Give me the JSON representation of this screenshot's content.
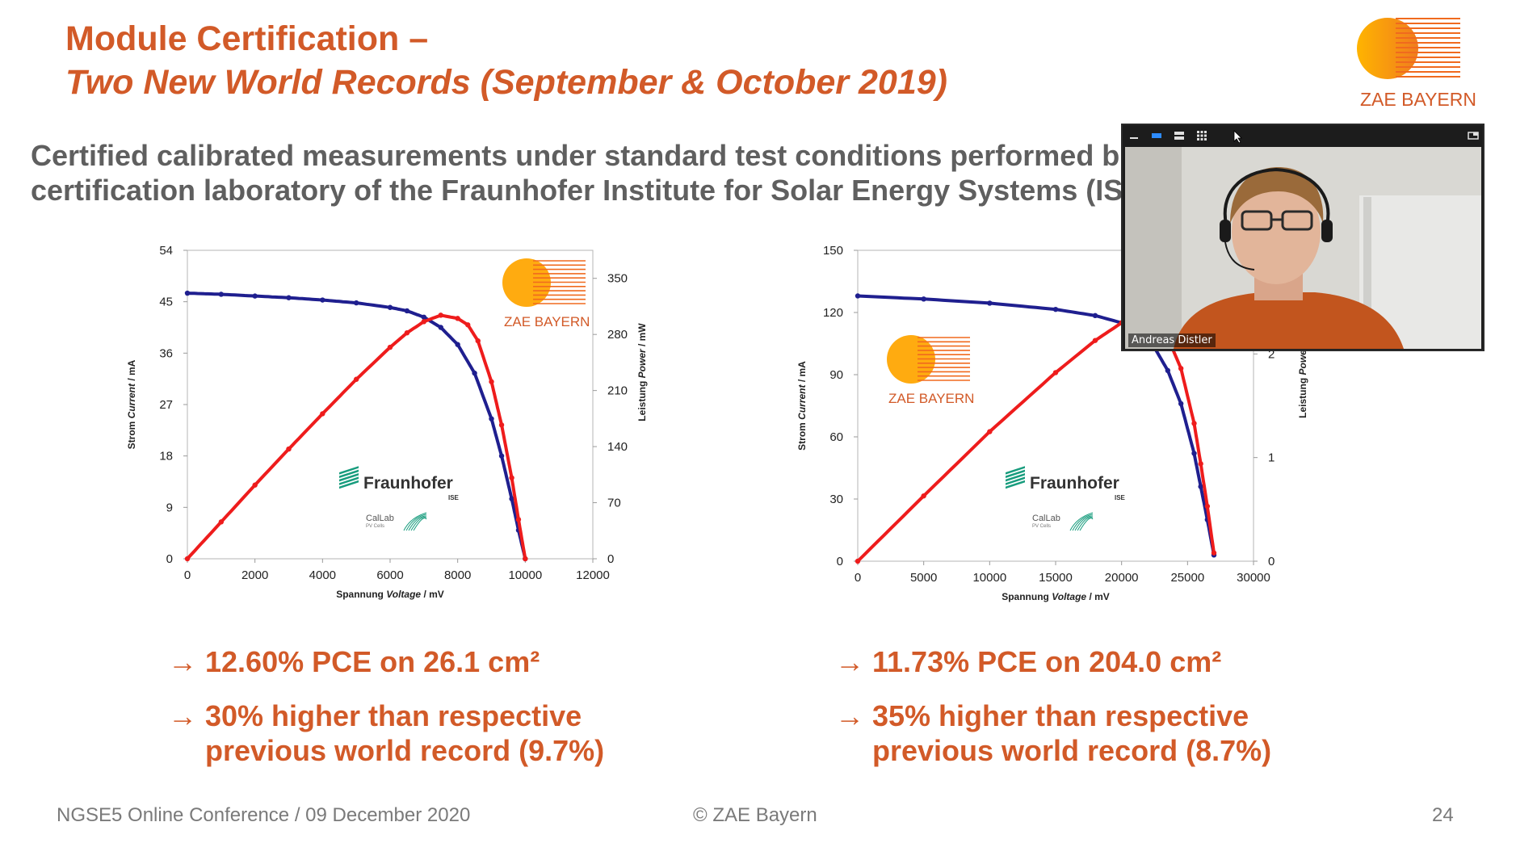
{
  "slide": {
    "title_line1": "Module Certification –",
    "title_line2": "Two New World Records (September & October 2019)",
    "subtitle_line1": "Certified calibrated measurements under standard test conditions performed b",
    "subtitle_line2": "certification laboratory of the Fraunhofer Institute for Solar Energy Systems (IS",
    "logo_text": "ZAE BAYERN",
    "left_bullets": {
      "b1": "12.60% PCE on 26.1 cm²",
      "b2_line1": "30% higher than respective",
      "b2_line2": "previous world record (9.7%)"
    },
    "right_bullets": {
      "b1": "11.73% PCE on 204.0 cm²",
      "b2_line1": "35% higher than respective",
      "b2_line2": "previous world record (8.7%)"
    },
    "arrow_glyph": "→",
    "footer": {
      "left": "NGSE5 Online Conference / 09 December 2020",
      "center": "© ZAE Bayern",
      "page": "24"
    }
  },
  "video": {
    "participant_name": "Andreas Distler"
  },
  "colors": {
    "accent": "#d25a28",
    "current_series": "#1f1f8f",
    "power_series": "#ee1c1c"
  },
  "chart_data": [
    {
      "type": "line",
      "xlabel_prefix": "Spannung ",
      "xlabel_italic": "Voltage",
      "xlabel_suffix": " / mV",
      "ylabel_prefix": "Strom ",
      "ylabel_italic": "Current",
      "ylabel_suffix": " / mA",
      "y2label_prefix": "Leistung ",
      "y2label_italic": "Power",
      "y2label_suffix": " / mW",
      "xlim": [
        0,
        12000
      ],
      "ylim": [
        0,
        54
      ],
      "y2lim": [
        0,
        385
      ],
      "xticks": [
        "0",
        "2000",
        "4000",
        "6000",
        "8000",
        "10000",
        "12000"
      ],
      "yticks": [
        "0",
        "9",
        "18",
        "27",
        "36",
        "45",
        "54"
      ],
      "y2ticks": [
        "0",
        "70",
        "140",
        "210",
        "280",
        "350"
      ],
      "logos": {
        "zae": "ZAE BAYERN",
        "fraunhofer": "Fraunhofer",
        "ise": "ISE",
        "callab": "CalLab",
        "pvcells": "PV Cells"
      },
      "series": [
        {
          "name": "Current",
          "axis": "y",
          "x": [
            0,
            1000,
            2000,
            3000,
            4000,
            5000,
            6000,
            6500,
            7000,
            7500,
            8000,
            8500,
            9000,
            9300,
            9600,
            9800,
            10000
          ],
          "values": [
            46.5,
            46.3,
            46.0,
            45.7,
            45.3,
            44.8,
            44.0,
            43.4,
            42.3,
            40.5,
            37.5,
            32.5,
            24.5,
            18.0,
            10.5,
            5.0,
            0
          ]
        },
        {
          "name": "Power",
          "axis": "y2",
          "x": [
            0,
            1000,
            2000,
            3000,
            4000,
            5000,
            6000,
            6500,
            7000,
            7500,
            8000,
            8300,
            8600,
            9000,
            9300,
            9600,
            9800,
            10000
          ],
          "values": [
            0,
            46,
            92,
            137,
            181,
            224,
            264,
            282,
            296,
            304,
            300,
            292,
            272,
            221,
            167,
            101,
            49,
            0
          ]
        }
      ]
    },
    {
      "type": "line",
      "xlabel_prefix": "Spannung ",
      "xlabel_italic": "Voltage",
      "xlabel_suffix": " / mV",
      "ylabel_prefix": "Strom ",
      "ylabel_italic": "Current",
      "ylabel_suffix": " / mA",
      "y2label_prefix": "Leistung ",
      "y2label_italic": "Power",
      "y2label_suffix": " / W",
      "xlim": [
        0,
        30000
      ],
      "ylim": [
        0,
        150
      ],
      "y2lim": [
        0,
        3
      ],
      "xticks": [
        "0",
        "5000",
        "10000",
        "15000",
        "20000",
        "25000",
        "30000"
      ],
      "yticks": [
        "0",
        "30",
        "60",
        "90",
        "120",
        "150"
      ],
      "y2ticks": [
        "0",
        "1",
        "2"
      ],
      "logos": {
        "zae": "ZAE BAYERN",
        "fraunhofer": "Fraunhofer",
        "ise": "ISE",
        "callab": "CalLab",
        "pvcells": "PV Cells"
      },
      "series": [
        {
          "name": "Current",
          "axis": "y",
          "x": [
            0,
            5000,
            10000,
            15000,
            18000,
            20000,
            21500,
            22500,
            23500,
            24500,
            25500,
            26000,
            26500,
            27000
          ],
          "values": [
            128,
            126.5,
            124.5,
            121.5,
            118.5,
            115,
            110,
            103,
            92,
            76,
            52,
            36,
            20,
            3
          ]
        },
        {
          "name": "Power",
          "axis": "y2",
          "x": [
            0,
            5000,
            10000,
            15000,
            18000,
            20000,
            21500,
            22500,
            23500,
            24500,
            25500,
            26000,
            26500,
            27000
          ],
          "values": [
            0,
            0.63,
            1.25,
            1.82,
            2.13,
            2.3,
            2.37,
            2.32,
            2.16,
            1.86,
            1.33,
            0.94,
            0.53,
            0.08
          ]
        }
      ]
    }
  ]
}
